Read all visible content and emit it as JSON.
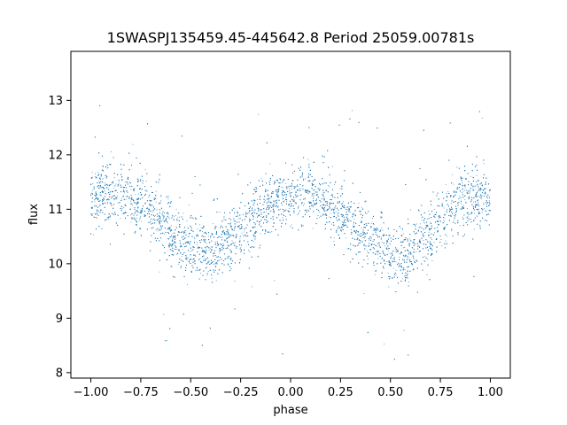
{
  "chart_data": {
    "type": "scatter",
    "title": "1SWASPJ135459.45-445642.8 Period 25059.00781s",
    "xlabel": "phase",
    "ylabel": "flux",
    "xlim": [
      -1.1,
      1.1
    ],
    "ylim": [
      7.9,
      13.9
    ],
    "xticks": [
      -1.0,
      -0.75,
      -0.5,
      -0.25,
      0.0,
      0.25,
      0.5,
      0.75,
      1.0
    ],
    "xtick_labels": [
      "−1.00",
      "−0.75",
      "−0.50",
      "−0.25",
      "0.00",
      "0.25",
      "0.50",
      "0.75",
      "1.00"
    ],
    "yticks": [
      8,
      9,
      10,
      11,
      12,
      13
    ],
    "ytick_labels": [
      "8",
      "9",
      "10",
      "11",
      "12",
      "13"
    ],
    "grid": false,
    "legend": "none",
    "marker_color": "#1f77b4",
    "series": [
      {
        "description_trend": "phase-folded light curve, dense point cloud following a sinusoid",
        "x": [
          -1.0,
          -0.9,
          -0.8,
          -0.7,
          -0.6,
          -0.5,
          -0.45,
          -0.4,
          -0.3,
          -0.2,
          -0.1,
          0.0,
          0.05,
          0.1,
          0.2,
          0.3,
          0.4,
          0.5,
          0.55,
          0.6,
          0.7,
          0.8,
          0.9,
          1.0
        ],
        "y": [
          11.25,
          11.3,
          11.2,
          10.95,
          10.6,
          10.3,
          10.2,
          10.2,
          10.45,
          10.8,
          11.1,
          11.25,
          11.3,
          11.25,
          11.05,
          10.8,
          10.45,
          10.2,
          10.15,
          10.2,
          10.55,
          10.95,
          11.2,
          11.3
        ]
      }
    ]
  }
}
